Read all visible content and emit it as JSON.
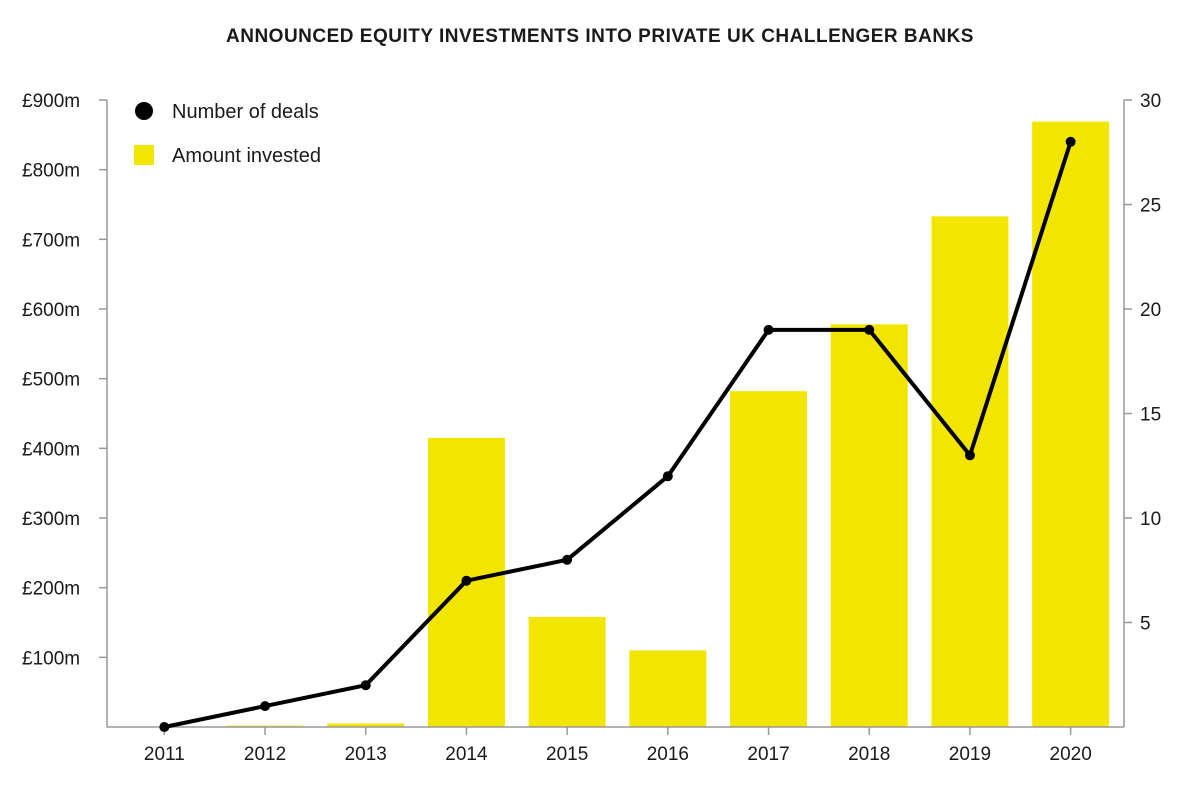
{
  "chart_data": {
    "type": "bar",
    "title": "ANNOUNCED EQUITY INVESTMENTS INTO PRIVATE UK CHALLENGER BANKS",
    "categories": [
      "2011",
      "2012",
      "2013",
      "2014",
      "2015",
      "2016",
      "2017",
      "2018",
      "2019",
      "2020"
    ],
    "series": [
      {
        "name": "Amount invested",
        "type": "bar",
        "axis": "left",
        "color": "#f2e600",
        "values": [
          0,
          2,
          5,
          415,
          158,
          110,
          482,
          578,
          733,
          869
        ]
      },
      {
        "name": "Number of deals",
        "type": "line",
        "axis": "right",
        "color": "#000000",
        "values": [
          0,
          1,
          2,
          7,
          8,
          12,
          19,
          19,
          13,
          28
        ]
      }
    ],
    "y_left": {
      "ylim": [
        0,
        900
      ],
      "tick_values": [
        100,
        200,
        300,
        400,
        500,
        600,
        700,
        800,
        900
      ],
      "tick_labels": [
        "£100m",
        "£200m",
        "£300m",
        "£400m",
        "£500m",
        "£600m",
        "£700m",
        "£800m",
        "£900m"
      ]
    },
    "y_right": {
      "ylim": [
        0,
        30
      ],
      "tick_values": [
        5,
        10,
        15,
        20,
        25,
        30
      ],
      "tick_labels": [
        "5",
        "10",
        "15",
        "20",
        "25",
        "30"
      ]
    },
    "legend": {
      "position": "top-left",
      "entries": [
        {
          "label": "Number of deals",
          "marker": "circle"
        },
        {
          "label": "Amount invested",
          "marker": "square"
        }
      ]
    },
    "grid": false
  }
}
